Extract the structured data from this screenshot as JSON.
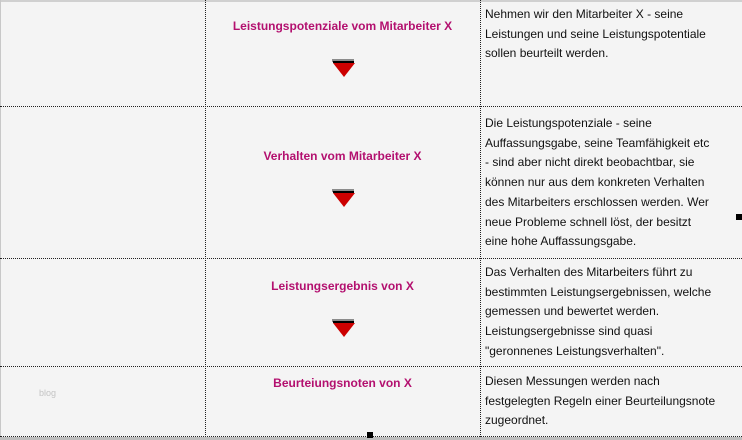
{
  "rows": [
    {
      "title": "Leistungspotenziale vom Mitarbeiter X",
      "has_arrow": true,
      "lines": [
        "Nehmen wir den Mitarbeiter X - seine",
        "Leistungen und seine Leistungspotentiale",
        "sollen beurteilt werden."
      ]
    },
    {
      "title": "Verhalten vom Mitarbeiter X",
      "has_arrow": true,
      "lines": [
        "Die Leistungspotenziale - seine",
        "Auffassungsgabe, seine Teamfähigkeit etc",
        "- sind aber nicht direkt beobachtbar, sie",
        "können nur aus dem konkreten Verhalten",
        "des Mitarbeiters erschlossen werden. Wer",
        "neue Probleme schnell löst, der besitzt",
        "eine hohe Auffassungsgabe."
      ]
    },
    {
      "title": "Leistungsergebnis von X",
      "has_arrow": true,
      "lines": [
        "Das Verhalten des Mitarbeiters führt zu",
        "bestimmten Leistungsergebnissen, welche",
        "gemessen und bewertet werden.",
        "Leistungsergebnisse sind quasi",
        "\"geronnenes Leistungsverhalten\"."
      ]
    },
    {
      "title": "Beurteiungsnoten von X",
      "has_arrow": false,
      "lines": [
        "Diesen Messungen werden nach",
        "festgelegten Regeln einer Beurteilungsnote",
        "zugeordnet."
      ]
    }
  ],
  "watermark": "blog",
  "colors": {
    "title": "#b3106f",
    "arrow": "#cc0000",
    "background": "#f4f4f4"
  },
  "icons": {
    "arrow": "down-arrow-icon"
  }
}
